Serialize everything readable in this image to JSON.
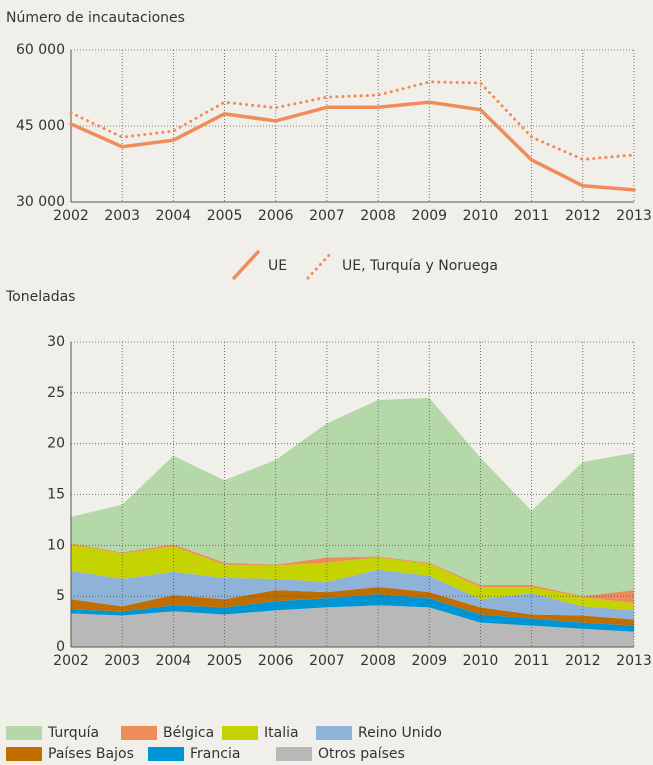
{
  "chart_data": [
    {
      "type": "line",
      "title": "Número de incautaciones",
      "categories": [
        "2002",
        "2003",
        "2004",
        "2005",
        "2006",
        "2007",
        "2008",
        "2009",
        "2010",
        "2011",
        "2012",
        "2013"
      ],
      "ylim": [
        30000,
        60000
      ],
      "yticks": [
        {
          "value": 30000,
          "label": "30 000"
        },
        {
          "value": 45000,
          "label": "45 000"
        },
        {
          "value": 60000,
          "label": "60 000"
        }
      ],
      "grid": true,
      "series": [
        {
          "name": "UE",
          "color": "#f08c5a",
          "style": "solid",
          "values": [
            45400,
            40900,
            42200,
            47400,
            46000,
            48700,
            48700,
            49700,
            48200,
            38300,
            33200,
            32400
          ]
        },
        {
          "name": "UE, Turquía y Noruega",
          "color": "#f08c5a",
          "style": "dotted",
          "values": [
            47600,
            42800,
            44000,
            49700,
            48600,
            50700,
            51100,
            53700,
            53500,
            42800,
            38400,
            39300
          ]
        }
      ]
    },
    {
      "type": "stacked_area",
      "title": "Toneladas",
      "categories": [
        "2002",
        "2003",
        "2004",
        "2005",
        "2006",
        "2007",
        "2008",
        "2009",
        "2010",
        "2011",
        "2012",
        "2013"
      ],
      "ylim": [
        0,
        30
      ],
      "yticks": [
        0,
        5,
        10,
        15,
        20,
        25,
        30
      ],
      "grid": true,
      "series": [
        {
          "name": "Otros países",
          "color": "#b8b8b8",
          "values": [
            3.3,
            3.1,
            3.5,
            3.2,
            3.6,
            3.9,
            4.1,
            3.9,
            2.4,
            2.1,
            1.8,
            1.5
          ]
        },
        {
          "name": "Francia",
          "color": "#0096d6",
          "values": [
            0.4,
            0.4,
            0.6,
            0.7,
            0.9,
            0.9,
            1.1,
            0.9,
            0.8,
            0.7,
            0.6,
            0.6
          ]
        },
        {
          "name": "Países Bajos",
          "color": "#c06e00",
          "values": [
            1.0,
            0.5,
            1.0,
            0.8,
            1.1,
            0.6,
            0.7,
            0.6,
            0.7,
            0.4,
            0.7,
            0.6
          ]
        },
        {
          "name": "Reino Unido",
          "color": "#8fb2d9",
          "values": [
            2.8,
            2.7,
            2.3,
            2.1,
            1.1,
            1.0,
            1.7,
            1.6,
            0.8,
            2.1,
            0.9,
            0.9
          ]
        },
        {
          "name": "Italia",
          "color": "#c5d400",
          "values": [
            2.6,
            2.5,
            2.5,
            1.3,
            1.3,
            1.9,
            1.2,
            1.2,
            1.2,
            0.6,
            0.9,
            0.7
          ]
        },
        {
          "name": "Bélgica",
          "color": "#f08c5a",
          "values": [
            0.1,
            0.1,
            0.2,
            0.2,
            0.1,
            0.5,
            0.1,
            0.1,
            0.2,
            0.2,
            0.1,
            1.3
          ]
        },
        {
          "name": "Turquía",
          "color": "#b5d8a8",
          "values": [
            2.6,
            4.7,
            8.7,
            8.1,
            10.3,
            13.2,
            15.4,
            16.2,
            12.5,
            7.3,
            13.2,
            13.5
          ]
        }
      ]
    }
  ]
}
